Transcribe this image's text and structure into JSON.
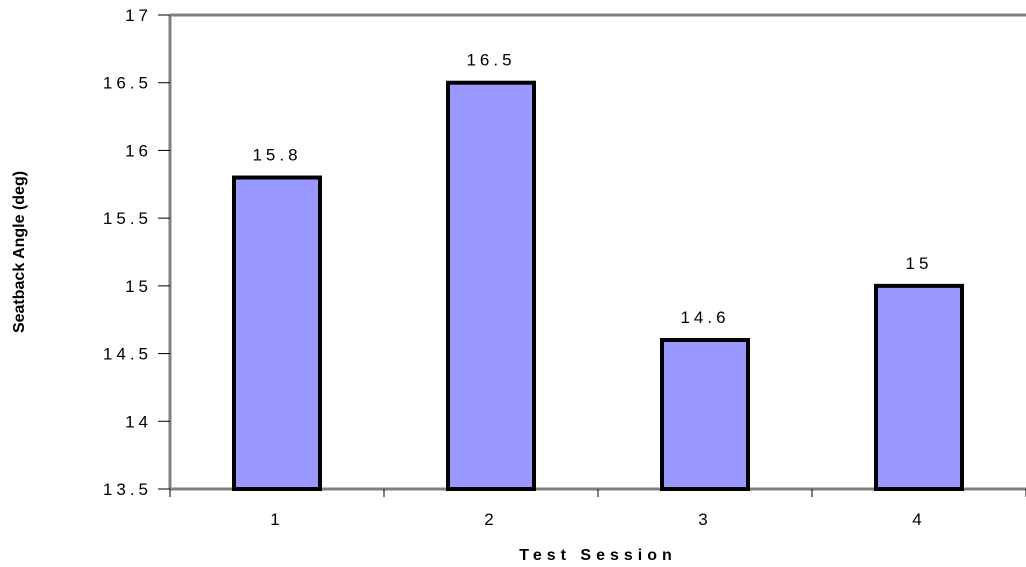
{
  "chart_data": {
    "type": "bar",
    "categories": [
      "1",
      "2",
      "3",
      "4"
    ],
    "values": [
      15.8,
      16.5,
      14.6,
      15
    ],
    "data_labels": [
      "15.8",
      "16.5",
      "14.6",
      "15"
    ],
    "title": "",
    "xlabel": "Test Session",
    "ylabel": "Seatback Angle (deg)",
    "ylim": [
      13.5,
      17
    ],
    "yticks": [
      13.5,
      14,
      14.5,
      15,
      15.5,
      16,
      16.5,
      17
    ],
    "ytick_labels": [
      "13.5",
      "14",
      "14.5",
      "15",
      "15.5",
      "16",
      "16.5",
      "17"
    ],
    "grid": false,
    "legend": "none",
    "colors": {
      "bar_fill": "#9999ff",
      "bar_stroke": "#000000",
      "axis": "#808080"
    }
  }
}
